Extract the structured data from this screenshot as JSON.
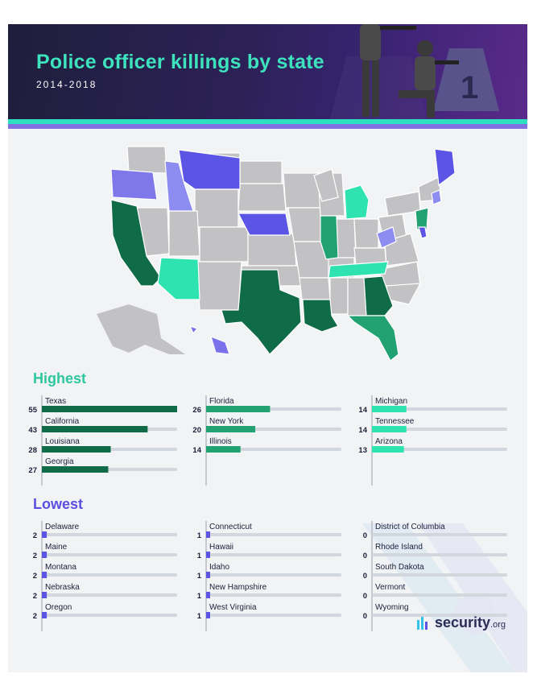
{
  "title": "Police officer killings by state",
  "subtitle": "2014-2018",
  "colors": {
    "title": "#3de3bd",
    "highest_title": "#2ec7a0",
    "lowest_title": "#5a4fe0",
    "dark_green": "#0f6b48",
    "mid_green": "#22a272",
    "light_green": "#2fe3b0",
    "purple": "#5b54e5",
    "gray_map": "#c2c2c4"
  },
  "brand": {
    "name": "security",
    "suffix": ".org"
  },
  "chart_data": [
    {
      "type": "bar",
      "title": "Highest",
      "max_value": 55,
      "series": [
        {
          "categories": [
            "Texas",
            "California",
            "Louisiana",
            "Georgia"
          ],
          "values": [
            55,
            43,
            28,
            27
          ]
        },
        {
          "categories": [
            "Florida",
            "New York",
            "Illinois"
          ],
          "values": [
            26,
            20,
            14
          ]
        },
        {
          "categories": [
            "Michigan",
            "Tennessee",
            "Arizona"
          ],
          "values": [
            14,
            14,
            13
          ]
        }
      ]
    },
    {
      "type": "bar",
      "title": "Lowest",
      "max_value": 55,
      "series": [
        {
          "categories": [
            "Delaware",
            "Maine",
            "Montana",
            "Nebraska",
            "Oregon"
          ],
          "values": [
            2,
            2,
            2,
            2,
            2
          ]
        },
        {
          "categories": [
            "Connecticut",
            "Hawaii",
            "Idaho",
            "New Hampshire",
            "West Virginia"
          ],
          "values": [
            1,
            1,
            1,
            1,
            1
          ]
        },
        {
          "categories": [
            "District of Columbia",
            "Rhode Island",
            "South Dakota",
            "Vermont",
            "Wyoming"
          ],
          "values": [
            0,
            0,
            0,
            0,
            0
          ]
        }
      ]
    }
  ]
}
